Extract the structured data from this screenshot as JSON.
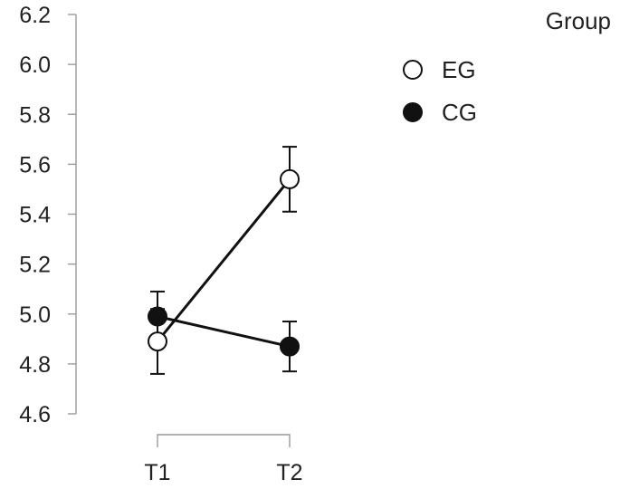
{
  "chart_data": {
    "type": "line",
    "categories": [
      "T1",
      "T2"
    ],
    "ylim": [
      4.6,
      6.2
    ],
    "yticks": [
      "4.6",
      "4.8",
      "5.0",
      "5.2",
      "5.4",
      "5.6",
      "5.8",
      "6.0",
      "6.2"
    ],
    "legend_title": "Group",
    "legend_position": "top-right",
    "series": [
      {
        "name": "EG",
        "marker": "open-circle",
        "values": [
          4.89,
          5.54
        ],
        "error_low": [
          4.76,
          5.41
        ],
        "error_high": [
          5.02,
          5.67
        ]
      },
      {
        "name": "CG",
        "marker": "filled-circle",
        "values": [
          4.99,
          4.87
        ],
        "error_low": [
          4.89,
          4.77
        ],
        "error_high": [
          5.09,
          4.97
        ]
      }
    ],
    "colors": {
      "line": "#111111",
      "axis": "#999999",
      "open_fill": "#ffffff",
      "filled_fill": "#111111"
    }
  }
}
